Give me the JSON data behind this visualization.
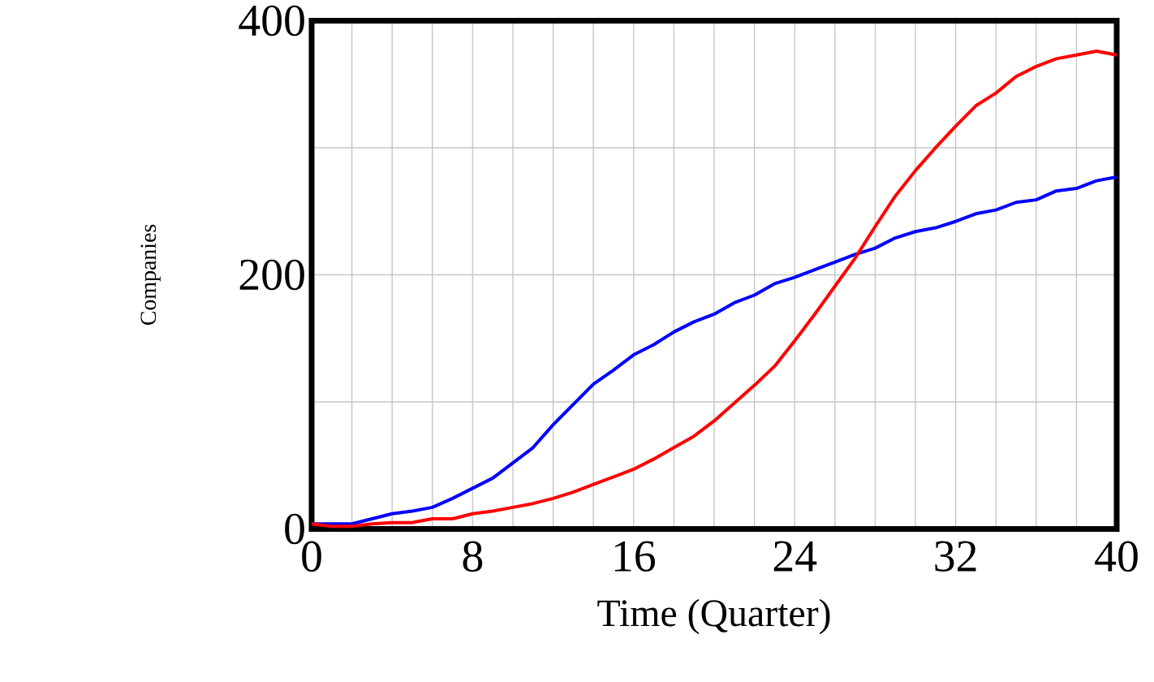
{
  "chart_data": {
    "type": "line",
    "xlabel": "Time (Quarter)",
    "ylabel": "Companies",
    "x": [
      0,
      1,
      2,
      3,
      4,
      5,
      6,
      7,
      8,
      9,
      10,
      11,
      12,
      13,
      14,
      15,
      16,
      17,
      18,
      19,
      20,
      21,
      22,
      23,
      24,
      25,
      26,
      27,
      28,
      29,
      30,
      31,
      32,
      33,
      34,
      35,
      36,
      37,
      38,
      39,
      40
    ],
    "series": [
      {
        "color": "#0000ff",
        "values": [
          4,
          4,
          4,
          8,
          12,
          14,
          17,
          24,
          32,
          40,
          52,
          64,
          82,
          98,
          114,
          125,
          137,
          145,
          155,
          163,
          169,
          178,
          184,
          193,
          198,
          204,
          210,
          216,
          221,
          229,
          234,
          237,
          242,
          248,
          251,
          257,
          259,
          266,
          268,
          274,
          277
        ]
      },
      {
        "color": "#ff0000",
        "values": [
          4,
          2,
          2,
          4,
          5,
          5,
          8,
          8,
          12,
          14,
          17,
          20,
          24,
          29,
          35,
          41,
          47,
          55,
          64,
          73,
          85,
          99,
          113,
          128,
          148,
          169,
          191,
          213,
          238,
          262,
          282,
          300,
          317,
          333,
          343,
          356,
          364,
          370,
          373,
          376,
          373
        ]
      }
    ],
    "xlim": [
      0,
      40
    ],
    "ylim": [
      0,
      400
    ],
    "xticks": [
      0,
      {
        "value": 2,
        "label": null
      },
      {
        "value": 4,
        "label": null
      },
      {
        "value": 6,
        "label": null
      },
      8,
      {
        "value": 10,
        "label": null
      },
      {
        "value": 12,
        "label": null
      },
      {
        "value": 14,
        "label": null
      },
      16,
      {
        "value": 18,
        "label": null
      },
      {
        "value": 20,
        "label": null
      },
      {
        "value": 22,
        "label": null
      },
      24,
      {
        "value": 26,
        "label": null
      },
      {
        "value": 28,
        "label": null
      },
      {
        "value": 30,
        "label": null
      },
      32,
      {
        "value": 34,
        "label": null
      },
      {
        "value": 36,
        "label": null
      },
      {
        "value": 38,
        "label": null
      },
      40
    ],
    "yticks": [
      0,
      {
        "value": 100,
        "label": null
      },
      200,
      {
        "value": 300,
        "label": null
      },
      400
    ],
    "grid": true,
    "line_style": "solid",
    "marker": "none"
  }
}
